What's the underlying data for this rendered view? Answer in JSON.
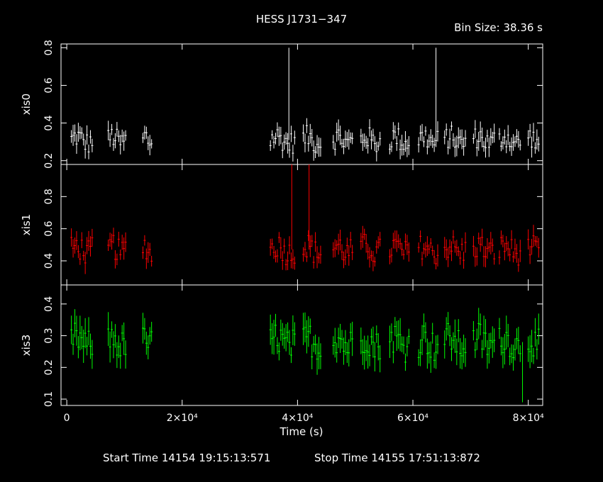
{
  "header": {
    "title": "HESS J1731−347",
    "bin_size": "Bin Size: 38.36 s"
  },
  "footer": {
    "start_time": "Start Time 14154 19:15:13:571",
    "stop_time": "Stop Time 14155 17:51:13:872"
  },
  "colors": {
    "xis0": "#ffffff",
    "xis1": "#ff0000",
    "xis3": "#00ff00",
    "axes": "#ffffff",
    "background": "#000000"
  },
  "chart_data": {
    "type": "scatter",
    "title": "HESS J1731−347",
    "xlabel": "Time (s)",
    "xlim": [
      -1000,
      82500
    ],
    "x_ticks": [
      0,
      20000,
      40000,
      60000,
      80000
    ],
    "x_tick_labels": [
      "0",
      "2×10⁴",
      "4×10⁴",
      "6×10⁴",
      "8×10⁴"
    ],
    "panels": [
      {
        "name": "xis0",
        "ylabel": "xis0",
        "ylim": [
          0.18,
          0.82
        ],
        "y_ticks": [
          0.2,
          0.4,
          0.6,
          0.8
        ],
        "y_tick_labels": [
          "0.2",
          "0.4",
          "0.6",
          "0.8"
        ],
        "base": 0.31,
        "spread": 0.06,
        "err": 0.04,
        "spikes": [
          [
            38500,
            0.8
          ],
          [
            64000,
            0.8
          ]
        ]
      },
      {
        "name": "xis1",
        "ylabel": "xis1",
        "ylim": [
          0.25,
          1.0
        ],
        "y_ticks": [
          0.4,
          0.6,
          0.8
        ],
        "y_tick_labels": [
          "0.4",
          "0.6",
          "0.8"
        ],
        "base": 0.47,
        "spread": 0.08,
        "err": 0.05,
        "spikes": [
          [
            39000,
            1.0
          ],
          [
            42000,
            1.0
          ]
        ]
      },
      {
        "name": "xis3",
        "ylabel": "xis3",
        "ylim": [
          0.08,
          0.46
        ],
        "y_ticks": [
          0.1,
          0.2,
          0.3,
          0.4
        ],
        "y_tick_labels": [
          "0.1",
          "0.2",
          "0.3",
          "0.4"
        ],
        "base": 0.28,
        "spread": 0.05,
        "err": 0.04,
        "spikes": [
          [
            79000,
            0.09
          ]
        ]
      }
    ],
    "segments": [
      [
        800,
        4500
      ],
      [
        7200,
        10200
      ],
      [
        13200,
        14900
      ],
      [
        35300,
        39700
      ],
      [
        41000,
        44200
      ],
      [
        46200,
        49500
      ],
      [
        51000,
        54500
      ],
      [
        56000,
        59500
      ],
      [
        61000,
        64500
      ],
      [
        65500,
        69200
      ],
      [
        70500,
        74200
      ],
      [
        75000,
        78800
      ],
      [
        80000,
        82000
      ]
    ],
    "bin_size_s": 38.36,
    "errorbar_step_s": 300
  }
}
